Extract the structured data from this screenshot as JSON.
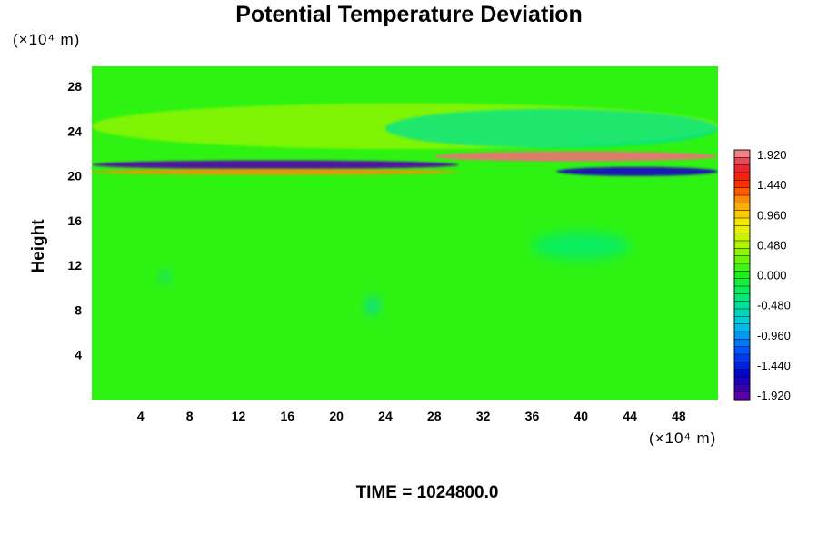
{
  "chart_data": {
    "type": "heatmap",
    "title": "Potential Temperature Deviation",
    "ylabel": "Height",
    "xunit": "(×10⁴ m)",
    "yunit": "(×10⁴ m)",
    "xticks": [
      "4",
      "8",
      "12",
      "16",
      "20",
      "24",
      "28",
      "32",
      "36",
      "40",
      "44",
      "48"
    ],
    "yticks": [
      "4",
      "8",
      "12",
      "16",
      "20",
      "24",
      "28"
    ],
    "xlim": [
      0,
      51.2
    ],
    "ylim": [
      0,
      29.8
    ],
    "colorbar": {
      "labels": [
        "1.920",
        "1.440",
        "0.960",
        "0.480",
        "0.000",
        "-0.480",
        "-0.960",
        "-1.440",
        "-1.920"
      ],
      "range": [
        -2.0,
        2.0
      ],
      "levels": 33
    },
    "background_value": 0.05,
    "features": [
      {
        "name": "warm-anomaly-band",
        "x": [
          28,
          51.2
        ],
        "y": [
          21.3,
          22.2
        ],
        "value": 1.9
      },
      {
        "name": "cold-anomaly-band",
        "x": [
          0,
          30
        ],
        "y": [
          20.6,
          21.4
        ],
        "value": -1.9
      },
      {
        "name": "cold-anomaly-band-east",
        "x": [
          38,
          51.2
        ],
        "y": [
          20.0,
          20.8
        ],
        "value": -1.7
      },
      {
        "name": "warm-stripe-low",
        "x": [
          0,
          30
        ],
        "y": [
          20.1,
          20.6
        ],
        "value": 1.2
      },
      {
        "name": "wave-layer",
        "x": [
          0,
          51.2
        ],
        "y": [
          22.4,
          26.5
        ],
        "value": 0.4
      },
      {
        "name": "cool-patch-upper",
        "x": [
          24,
          51.2
        ],
        "y": [
          22.5,
          26.0
        ],
        "value": -0.45
      },
      {
        "name": "cool-patch-mid",
        "x": [
          36,
          44
        ],
        "y": [
          12.5,
          15
        ],
        "value": -0.35
      },
      {
        "name": "cool-spot-a",
        "x": [
          5.5,
          6.5
        ],
        "y": [
          10.5,
          11.5
        ],
        "value": -0.5
      },
      {
        "name": "cool-spot-b",
        "x": [
          22.3,
          23.6
        ],
        "y": [
          7.6,
          9.2
        ],
        "value": -0.6
      }
    ],
    "time_label": "TIME = 1024800.0"
  }
}
